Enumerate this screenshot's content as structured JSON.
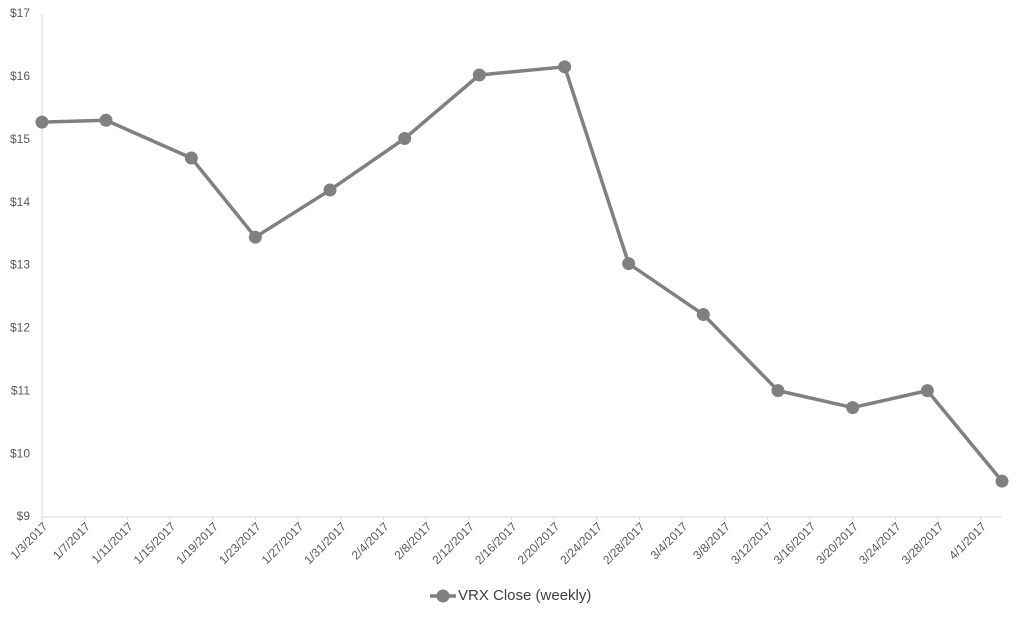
{
  "chart_data": {
    "type": "line",
    "x": [
      "1/3/2017",
      "1/9/2017",
      "1/17/2017",
      "1/23/2017",
      "1/30/2017",
      "2/6/2017",
      "2/13/2017",
      "2/21/2017",
      "2/27/2017",
      "3/6/2017",
      "3/13/2017",
      "3/20/2017",
      "3/27/2017",
      "4/3/2017"
    ],
    "series": [
      {
        "name": "VRX Close (weekly)",
        "color": "#808080",
        "values": [
          15.28,
          15.31,
          14.71,
          13.45,
          14.2,
          15.02,
          16.03,
          16.16,
          13.03,
          12.22,
          11.01,
          10.74,
          11.01,
          9.57
        ]
      }
    ],
    "xlim": [
      "1/3/2017",
      "4/3/2017"
    ],
    "xticks": [
      "1/3/2017",
      "1/7/2017",
      "1/11/2017",
      "1/15/2017",
      "1/19/2017",
      "1/23/2017",
      "1/27/2017",
      "1/31/2017",
      "2/4/2017",
      "2/8/2017",
      "2/12/2017",
      "2/16/2017",
      "2/20/2017",
      "2/24/2017",
      "2/28/2017",
      "3/4/2017",
      "3/8/2017",
      "3/12/2017",
      "3/16/2017",
      "3/20/2017",
      "3/24/2017",
      "3/28/2017",
      "4/1/2017"
    ],
    "ylim": [
      9,
      17
    ],
    "yticks": [
      {
        "value": 9,
        "label": "$9"
      },
      {
        "value": 10,
        "label": "$10"
      },
      {
        "value": 11,
        "label": "$11"
      },
      {
        "value": 12,
        "label": "$12"
      },
      {
        "value": 13,
        "label": "$13"
      },
      {
        "value": 14,
        "label": "$14"
      },
      {
        "value": 15,
        "label": "$15"
      },
      {
        "value": 16,
        "label": "$16"
      },
      {
        "value": 17,
        "label": "$17"
      }
    ],
    "grid": false,
    "legend": "bottom"
  }
}
